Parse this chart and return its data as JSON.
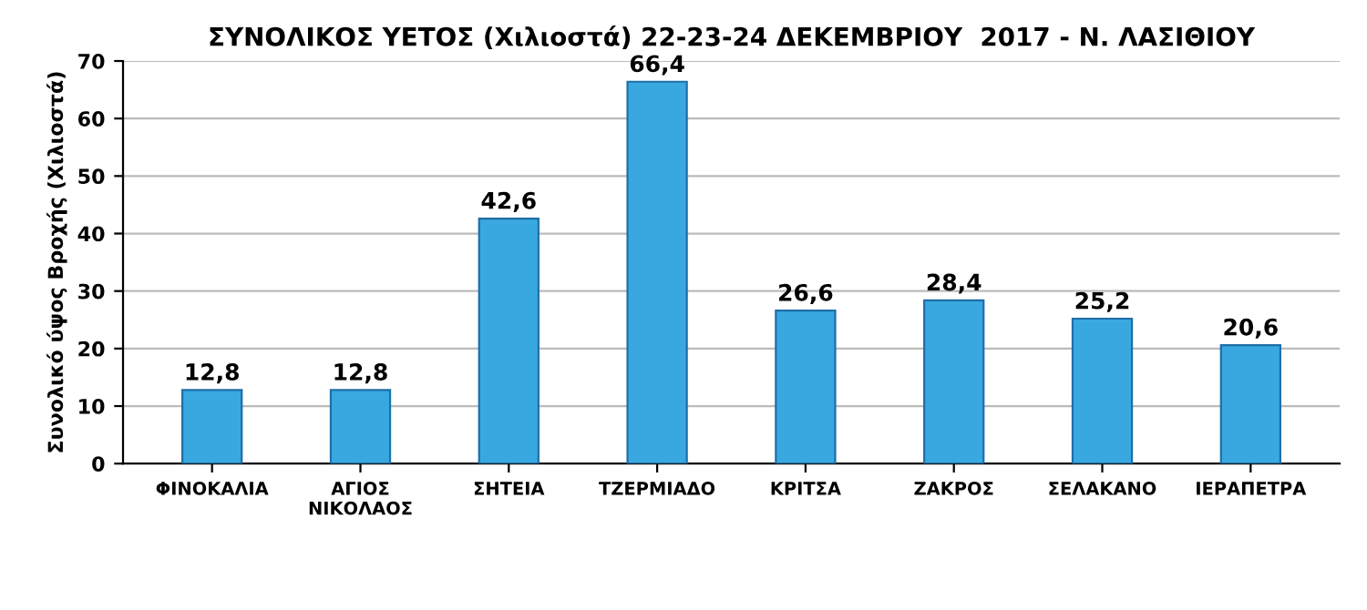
{
  "chart_data": {
    "type": "bar",
    "title": "ΣΥΝΟΛΙΚΟΣ ΥΕΤΟΣ (Χιλιοστά) 22-23-24 ΔΕΚΕΜΒΡΙΟΥ  2017 - Ν. ΛΑΣΙΘΙΟΥ",
    "ylabel": "Συνολικό ύψος Βροχής (Χιλιοστά)",
    "categories": [
      "ΦΙΝΟΚΑΛΙΑ",
      "ΑΓΙΟΣ\nΝΙΚΟΛΑΟΣ",
      "ΣΗΤΕΙΑ",
      "ΤΖΕΡΜΙΑΔΟ",
      "ΚΡΙΤΣΑ",
      "ΖΑΚΡΟΣ",
      "ΣΕΛΑΚΑΝΟ",
      "ΙΕΡΑΠΕΤΡΑ"
    ],
    "values": [
      12.8,
      12.8,
      42.6,
      66.4,
      26.6,
      28.4,
      25.2,
      20.6
    ],
    "value_labels": [
      "12,8",
      "12,8",
      "42,6",
      "66,4",
      "26,6",
      "28,4",
      "25,2",
      "20,6"
    ],
    "color": "#3aa8e0",
    "ylim": [
      0,
      70
    ],
    "yticks": [
      0,
      10,
      20,
      30,
      40,
      50,
      60,
      70
    ],
    "grid": "y",
    "legend": false
  }
}
